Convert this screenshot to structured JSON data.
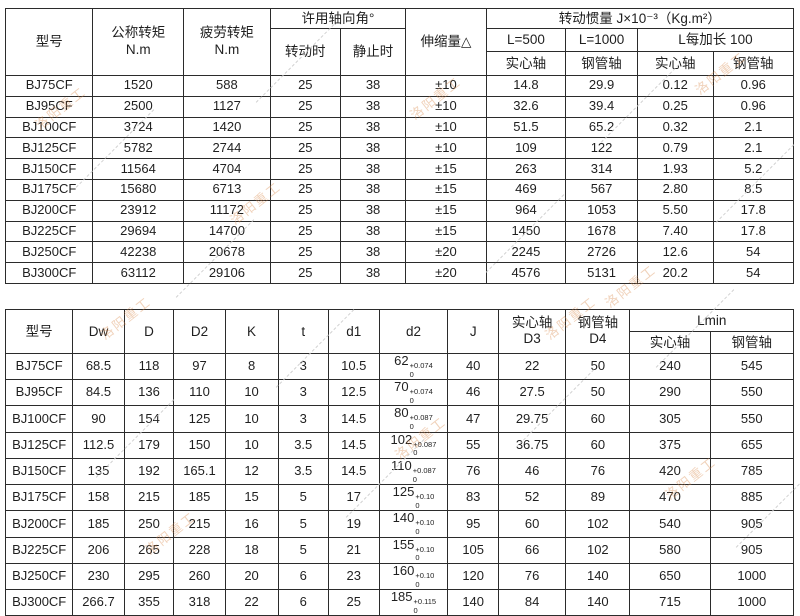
{
  "watermark": {
    "text": "洛阳重工",
    "color": "#d98a4d"
  },
  "table1": {
    "header": {
      "model": "型号",
      "nominal_torque": [
        "公称转矩",
        "N.m"
      ],
      "fatigue_torque": [
        "疲劳转矩",
        "N.m"
      ],
      "axial_angle": "许用轴向角°",
      "rotating": "转动时",
      "stationary": "静止时",
      "expansion": "伸缩量△",
      "inertia": "转动惯量 J×10⁻³（Kg.m²）",
      "l500": "L=500",
      "l1000": "L=1000",
      "l_add100": "L每加长 100",
      "solid": "实心轴",
      "tube": "钢管轴"
    },
    "rows": [
      [
        "BJ75CF",
        "1520",
        "588",
        "25",
        "38",
        "±10",
        "14.8",
        "29.9",
        "0.12",
        "0.96"
      ],
      [
        "BJ95CF",
        "2500",
        "1127",
        "25",
        "38",
        "±10",
        "32.6",
        "39.4",
        "0.25",
        "0.96"
      ],
      [
        "BJ100CF",
        "3724",
        "1420",
        "25",
        "38",
        "±10",
        "51.5",
        "65.2",
        "0.32",
        "2.1"
      ],
      [
        "BJ125CF",
        "5782",
        "2744",
        "25",
        "38",
        "±10",
        "109",
        "122",
        "0.79",
        "2.1"
      ],
      [
        "BJ150CF",
        "11564",
        "4704",
        "25",
        "38",
        "±15",
        "263",
        "314",
        "1.93",
        "5.2"
      ],
      [
        "BJ175CF",
        "15680",
        "6713",
        "25",
        "38",
        "±15",
        "469",
        "567",
        "2.80",
        "8.5"
      ],
      [
        "BJ200CF",
        "23912",
        "11172",
        "25",
        "38",
        "±15",
        "964",
        "1053",
        "5.50",
        "17.8"
      ],
      [
        "BJ225CF",
        "29694",
        "14700",
        "25",
        "38",
        "±15",
        "1450",
        "1678",
        "7.40",
        "17.8"
      ],
      [
        "BJ250CF",
        "42238",
        "20678",
        "25",
        "38",
        "±20",
        "2245",
        "2726",
        "12.6",
        "54"
      ],
      [
        "BJ300CF",
        "63112",
        "29106",
        "25",
        "38",
        "±20",
        "4576",
        "5131",
        "20.2",
        "54"
      ]
    ]
  },
  "table2": {
    "header": {
      "model": "型号",
      "dw": "Dw",
      "d": "D",
      "d2col": "D2",
      "k": "K",
      "t": "t",
      "d1": "d1",
      "d2": "d2",
      "j": "J",
      "solid_d3": [
        "实心轴",
        "D3"
      ],
      "tube_d4": [
        "钢管轴",
        "D4"
      ],
      "lmin": "Lmin",
      "solid": "实心轴",
      "tube": "钢管轴"
    },
    "rows": [
      [
        "BJ75CF",
        "68.5",
        "118",
        "97",
        "8",
        "3",
        "10.5",
        {
          "v": "62",
          "sup": "+0.074",
          "sub": "0"
        },
        "40",
        "22",
        "50",
        "240",
        "545"
      ],
      [
        "BJ95CF",
        "84.5",
        "136",
        "110",
        "10",
        "3",
        "12.5",
        {
          "v": "70",
          "sup": "+0.074",
          "sub": "0"
        },
        "46",
        "27.5",
        "50",
        "290",
        "550"
      ],
      [
        "BJ100CF",
        "90",
        "154",
        "125",
        "10",
        "3",
        "14.5",
        {
          "v": "80",
          "sup": "+0.087",
          "sub": "0"
        },
        "47",
        "29.75",
        "60",
        "305",
        "550"
      ],
      [
        "BJ125CF",
        "112.5",
        "179",
        "150",
        "10",
        "3.5",
        "14.5",
        {
          "v": "102",
          "sup": "+0.087",
          "sub": "0"
        },
        "55",
        "36.75",
        "60",
        "375",
        "655"
      ],
      [
        "BJ150CF",
        "135",
        "192",
        "165.1",
        "12",
        "3.5",
        "14.5",
        {
          "v": "110",
          "sup": "+0.087",
          "sub": "0"
        },
        "76",
        "46",
        "76",
        "420",
        "785"
      ],
      [
        "BJ175CF",
        "158",
        "215",
        "185",
        "15",
        "5",
        "17",
        {
          "v": "125",
          "sup": "+0.10",
          "sub": "0"
        },
        "83",
        "52",
        "89",
        "470",
        "885"
      ],
      [
        "BJ200CF",
        "185",
        "250",
        "215",
        "16",
        "5",
        "19",
        {
          "v": "140",
          "sup": "+0.10",
          "sub": "0"
        },
        "95",
        "60",
        "102",
        "540",
        "905"
      ],
      [
        "BJ225CF",
        "206",
        "265",
        "228",
        "18",
        "5",
        "21",
        {
          "v": "155",
          "sup": "+0.10",
          "sub": "0"
        },
        "105",
        "66",
        "102",
        "580",
        "905"
      ],
      [
        "BJ250CF",
        "230",
        "295",
        "260",
        "20",
        "6",
        "23",
        {
          "v": "160",
          "sup": "+0.10",
          "sub": "0"
        },
        "120",
        "76",
        "140",
        "650",
        "1000"
      ],
      [
        "BJ300CF",
        "266.7",
        "355",
        "318",
        "22",
        "6",
        "25",
        {
          "v": "185",
          "sup": "+0.115",
          "sub": "0"
        },
        "140",
        "84",
        "140",
        "715",
        "1000"
      ]
    ]
  }
}
